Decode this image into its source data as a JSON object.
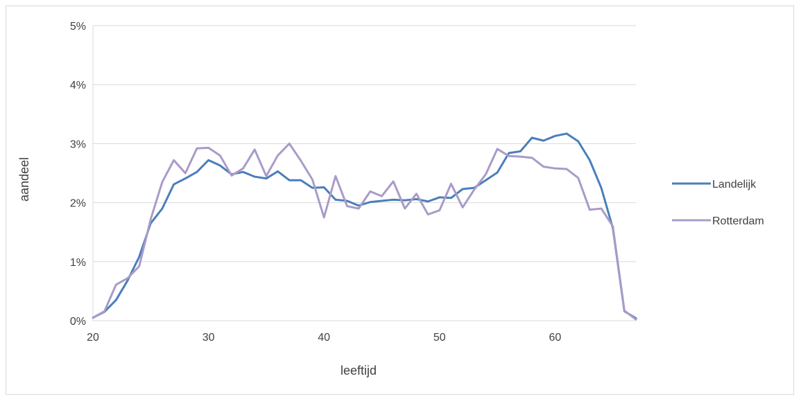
{
  "chart_data": {
    "type": "line",
    "title": "",
    "xlabel": "leeftijd",
    "ylabel": "aandeel",
    "xlim": [
      20,
      67
    ],
    "ylim": [
      0,
      0.05
    ],
    "x_ticks": [
      20,
      30,
      40,
      50,
      60
    ],
    "x_tick_labels": [
      "20",
      "30",
      "40",
      "50",
      "60"
    ],
    "y_ticks": [
      0,
      0.01,
      0.02,
      0.03,
      0.04,
      0.05
    ],
    "y_tick_labels": [
      "0%",
      "1%",
      "2%",
      "3%",
      "4%",
      "5%"
    ],
    "grid": "horizontal",
    "legend_position": "right",
    "x": [
      20,
      21,
      22,
      23,
      24,
      25,
      26,
      27,
      28,
      29,
      30,
      31,
      32,
      33,
      34,
      35,
      36,
      37,
      38,
      39,
      40,
      41,
      42,
      43,
      44,
      45,
      46,
      47,
      48,
      49,
      50,
      51,
      52,
      53,
      54,
      55,
      56,
      57,
      58,
      59,
      60,
      61,
      62,
      63,
      64,
      65,
      66,
      67
    ],
    "series": [
      {
        "name": "Landelijk",
        "color": "#4a7ebb",
        "values": [
          0.0005,
          0.0015,
          0.0035,
          0.0068,
          0.0108,
          0.0165,
          0.019,
          0.0231,
          0.0241,
          0.0252,
          0.0272,
          0.0263,
          0.0248,
          0.0252,
          0.0244,
          0.0241,
          0.0253,
          0.0238,
          0.0238,
          0.0225,
          0.0226,
          0.0205,
          0.0203,
          0.0195,
          0.0201,
          0.0203,
          0.0205,
          0.0204,
          0.0206,
          0.0202,
          0.0209,
          0.0208,
          0.0223,
          0.0225,
          0.0238,
          0.0251,
          0.0284,
          0.0287,
          0.031,
          0.0305,
          0.0313,
          0.0317,
          0.0304,
          0.0272,
          0.0225,
          0.0157,
          0.0016,
          0.0004
        ]
      },
      {
        "name": "Rotterdam",
        "color": "#a99bc8",
        "values": [
          0.0005,
          0.0016,
          0.0061,
          0.0072,
          0.0092,
          0.0172,
          0.0235,
          0.0272,
          0.025,
          0.0292,
          0.0293,
          0.028,
          0.0246,
          0.0258,
          0.029,
          0.0245,
          0.028,
          0.03,
          0.0271,
          0.0239,
          0.0175,
          0.0245,
          0.0194,
          0.019,
          0.0219,
          0.0211,
          0.0236,
          0.019,
          0.0215,
          0.018,
          0.0187,
          0.0232,
          0.0192,
          0.0222,
          0.0248,
          0.0291,
          0.0279,
          0.0278,
          0.0276,
          0.0261,
          0.0258,
          0.0257,
          0.0242,
          0.0188,
          0.019,
          0.016,
          0.0017,
          0.0002
        ]
      }
    ]
  }
}
